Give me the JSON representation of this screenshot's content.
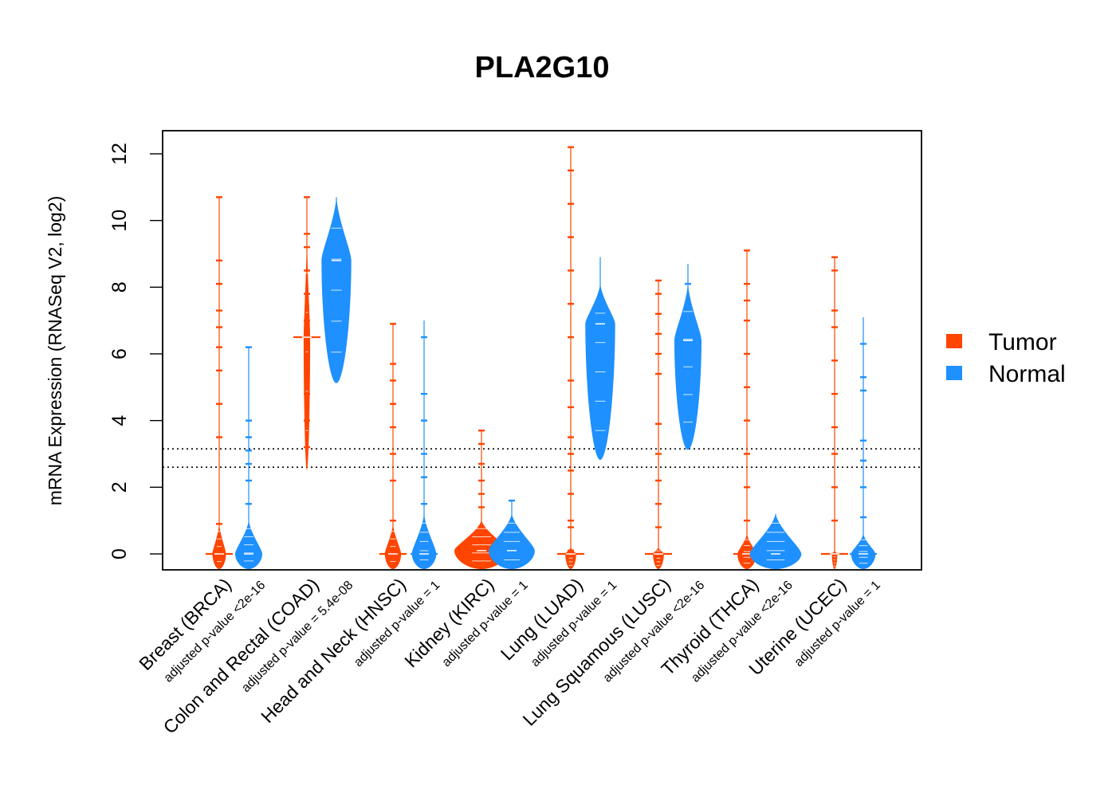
{
  "chart_data": {
    "type": "beanplot",
    "title": "PLA2G10",
    "ylabel": "mRNA Expression (RNASeq V2, log2)",
    "ylim": [
      -0.5,
      12.7
    ],
    "yticks": [
      0,
      2,
      4,
      6,
      8,
      10,
      12
    ],
    "reference_lines": [
      2.6,
      3.15
    ],
    "legend": {
      "position": "right",
      "entries": [
        {
          "name": "Tumor",
          "color": "#FF4500"
        },
        {
          "name": "Normal",
          "color": "#1E90FF"
        }
      ]
    },
    "categories": [
      {
        "name": "Breast (BRCA)",
        "pvalue": "adjusted p-value <2e-16",
        "tumor": {
          "min": 0,
          "max": 10.7,
          "median": 0,
          "bulk_top": 0.9,
          "bulk_width": 0.25,
          "outliers": [
            0.9,
            3.5,
            4.5,
            5.5,
            6.2,
            6.8,
            7.3,
            8.1,
            8.8,
            10.7
          ]
        },
        "normal": {
          "min": 0,
          "max": 6.2,
          "median": 0,
          "bulk_top": 1.0,
          "bulk_width": 0.5,
          "outliers": [
            1.5,
            2.2,
            2.7,
            3.1,
            3.5,
            4.0,
            6.2
          ]
        }
      },
      {
        "name": "Colon and Rectal (COAD)",
        "pvalue": "adjusted p-value = 5.4e-08",
        "tumor": {
          "min": 3.0,
          "max": 10.7,
          "median": 6.5,
          "bulk_top": 9.6,
          "bulk_width": 0.12,
          "outliers": [
            3.2,
            4.0,
            4.8,
            5.5,
            6.2,
            7.0,
            7.8,
            8.5,
            9.2,
            9.6,
            10.7
          ]
        },
        "normal": {
          "min": 5.6,
          "max": 10.7,
          "median": 8.8,
          "bulk_top": 10.7,
          "bulk_width": 0.55,
          "outliers": [
            5.6,
            6.1
          ]
        }
      },
      {
        "name": "Head and Neck (HNSC)",
        "pvalue": "adjusted p-value = 1",
        "tumor": {
          "min": 0,
          "max": 6.9,
          "median": 0,
          "bulk_top": 0.9,
          "bulk_width": 0.3,
          "outliers": [
            1.0,
            2.2,
            3.0,
            3.8,
            4.5,
            5.2,
            5.7,
            6.9
          ]
        },
        "normal": {
          "min": 0,
          "max": 7.0,
          "median": 0,
          "bulk_top": 1.2,
          "bulk_width": 0.45,
          "outliers": [
            1.5,
            2.3,
            3.0,
            4.0,
            4.8,
            6.5
          ]
        }
      },
      {
        "name": "Kidney (KIRC)",
        "pvalue": "adjusted p-value = 1",
        "tumor": {
          "min": 0,
          "max": 3.7,
          "median": 0.1,
          "bulk_top": 1.0,
          "bulk_width": 1.0,
          "outliers": [
            1.4,
            1.8,
            2.2,
            2.7,
            3.3,
            3.7
          ]
        },
        "normal": {
          "min": 0,
          "max": 1.6,
          "median": 0.1,
          "bulk_top": 1.2,
          "bulk_width": 0.85,
          "outliers": [
            1.6
          ]
        }
      },
      {
        "name": "Lung (LUAD)",
        "pvalue": "adjusted p-value = 1",
        "tumor": {
          "min": 0,
          "max": 12.2,
          "median": 0,
          "bulk_top": 0.2,
          "bulk_width": 0.2,
          "outliers": [
            0.1,
            0.8,
            1.0,
            1.8,
            2.5,
            3.0,
            3.5,
            4.4,
            5.2,
            6.5,
            7.5,
            8.5,
            9.5,
            10.5,
            11.5,
            12.2
          ]
        },
        "normal": {
          "min": 3.3,
          "max": 8.9,
          "median": 6.9,
          "bulk_top": 8.1,
          "bulk_width": 0.55,
          "outliers": [
            4.1
          ]
        }
      },
      {
        "name": "Lung Squamous (LUSC)",
        "pvalue": "adjusted p-value <2e-16",
        "tumor": {
          "min": 0,
          "max": 8.2,
          "median": 0,
          "bulk_top": 0.2,
          "bulk_width": 0.2,
          "outliers": [
            0.8,
            1.5,
            2.2,
            3.0,
            3.9,
            5.4,
            6.0,
            6.6,
            7.2,
            7.8,
            8.2
          ]
        },
        "normal": {
          "min": 3.6,
          "max": 8.7,
          "median": 6.4,
          "bulk_top": 8.1,
          "bulk_width": 0.5,
          "outliers": [
            4.4,
            8.1
          ]
        }
      },
      {
        "name": "Thyroid (THCA)",
        "pvalue": "adjusted p-value <2e-16",
        "tumor": {
          "min": 0,
          "max": 9.1,
          "median": 0,
          "bulk_top": 0.6,
          "bulk_width": 0.35,
          "outliers": [
            1.0,
            2.0,
            3.0,
            4.0,
            5.0,
            6.0,
            7.0,
            7.6,
            8.1,
            9.1
          ]
        },
        "normal": {
          "min": 0,
          "max": 1.2,
          "median": 0,
          "bulk_top": 1.2,
          "bulk_width": 0.95,
          "outliers": [
            0.45
          ]
        }
      },
      {
        "name": "Uterine (UCEC)",
        "pvalue": "adjusted p-value = 1",
        "tumor": {
          "min": 0,
          "max": 8.9,
          "median": 0,
          "bulk_top": 0.1,
          "bulk_width": 0.1,
          "outliers": [
            1.0,
            2.0,
            3.0,
            3.8,
            4.8,
            5.8,
            6.8,
            7.3,
            8.5,
            8.9
          ]
        },
        "normal": {
          "min": 0,
          "max": 7.1,
          "median": 0,
          "bulk_top": 0.6,
          "bulk_width": 0.45,
          "outliers": [
            1.1,
            2.0,
            2.8,
            3.4,
            4.9,
            5.3,
            6.3
          ]
        }
      }
    ]
  }
}
